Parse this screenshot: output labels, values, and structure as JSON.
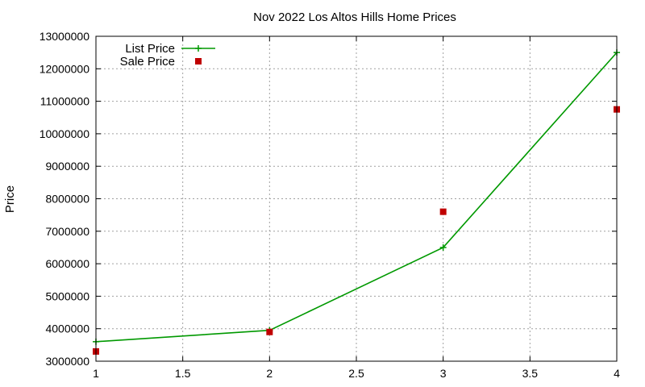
{
  "chart_data": {
    "type": "line",
    "title": "Nov 2022 Los Altos Hills Home Prices",
    "xlabel": "",
    "ylabel": "Price",
    "xlim": [
      1,
      4
    ],
    "ylim": [
      3000000,
      13000000
    ],
    "x_ticks": [
      1,
      1.5,
      2,
      2.5,
      3,
      3.5,
      4
    ],
    "x_tick_labels": [
      "1",
      "1.5",
      "2",
      "2.5",
      "3",
      "3.5",
      "4"
    ],
    "y_ticks": [
      3000000,
      4000000,
      5000000,
      6000000,
      7000000,
      8000000,
      9000000,
      10000000,
      11000000,
      12000000,
      13000000
    ],
    "y_tick_labels": [
      "3000000",
      "4000000",
      "5000000",
      "6000000",
      "7000000",
      "8000000",
      "9000000",
      "10000000",
      "11000000",
      "12000000",
      "13000000"
    ],
    "grid": true,
    "legend_position": "top-left",
    "series": [
      {
        "name": "List Price",
        "style": "linespoints",
        "marker": "plus",
        "color": "#009900",
        "x": [
          1,
          2,
          3,
          4
        ],
        "y": [
          3600000,
          3950000,
          6500000,
          12500000
        ]
      },
      {
        "name": "Sale Price",
        "style": "points",
        "marker": "square",
        "color": "#c00000",
        "x": [
          1,
          2,
          3,
          4
        ],
        "y": [
          3300000,
          3900000,
          7600000,
          10750000
        ]
      }
    ]
  }
}
